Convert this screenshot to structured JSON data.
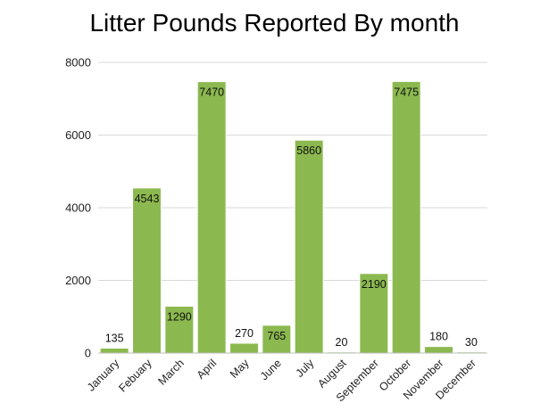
{
  "chart_data": {
    "type": "bar",
    "title": "Litter Pounds Reported By month",
    "xlabel": "",
    "ylabel": "",
    "categories": [
      "January",
      "Febuary",
      "March",
      "April",
      "May",
      "June",
      "July",
      "August",
      "September",
      "October",
      "November",
      "December"
    ],
    "values": [
      135,
      4543,
      1290,
      7470,
      270,
      765,
      5860,
      20,
      2190,
      7475,
      180,
      30
    ],
    "data_labels": [
      "135",
      "4543",
      "1290",
      "7470",
      "270",
      "765",
      "5860",
      "20",
      "2190",
      "7475",
      "180",
      "30"
    ],
    "ylim": [
      0,
      8000
    ],
    "yticks": [
      0,
      2000,
      4000,
      6000,
      8000
    ],
    "ytick_labels": [
      "0",
      "2000",
      "4000",
      "6000",
      "8000"
    ],
    "grid": true,
    "legend": "none",
    "colors": {
      "bar_fill": "#8bb94f",
      "bar_stroke": "#ffffff",
      "grid": "#d9d9d9",
      "axis": "#bfbfbf",
      "title": "#000000",
      "text": "#222222"
    }
  }
}
